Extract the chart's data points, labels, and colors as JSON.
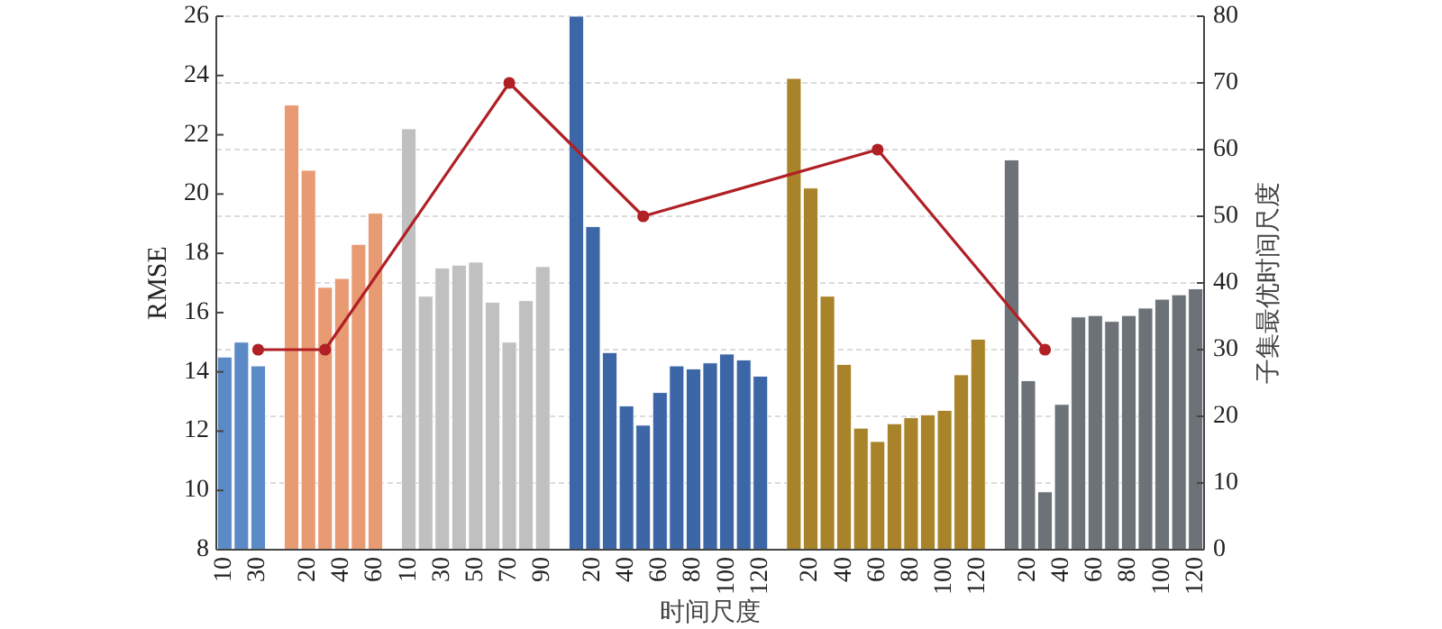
{
  "chart_data": {
    "type": "bar",
    "xlabel": "时间尺度",
    "ylabel": "RMSE",
    "y2label": "子集最优时间尺度",
    "categories": [
      "10",
      null,
      "30",
      null,
      null,
      "20",
      null,
      "40",
      null,
      "60",
      null,
      "10",
      null,
      "30",
      null,
      "50",
      null,
      "70",
      null,
      "90",
      null,
      null,
      "20",
      null,
      "40",
      null,
      "60",
      null,
      "80",
      null,
      "100",
      null,
      "120",
      null,
      null,
      "20",
      null,
      "40",
      null,
      "60",
      null,
      "80",
      null,
      "100",
      null,
      "120",
      null,
      null,
      "20",
      null,
      "40",
      null,
      "60",
      null,
      "80",
      null,
      "100",
      null,
      "120"
    ],
    "series": [
      {
        "values": [
          14.5,
          15.0,
          14.2,
          null,
          23.0,
          20.8,
          16.85,
          17.15,
          18.3,
          19.35,
          null,
          22.2,
          16.55,
          17.5,
          17.6,
          17.7,
          16.35,
          15.0,
          16.4,
          17.55,
          null,
          26.0,
          18.9,
          14.65,
          12.85,
          12.2,
          13.3,
          14.2,
          14.1,
          14.3,
          14.6,
          14.4,
          13.85,
          null,
          23.9,
          20.2,
          16.55,
          14.25,
          12.1,
          11.65,
          12.25,
          12.45,
          12.55,
          12.7,
          13.9,
          15.1,
          null,
          21.15,
          13.7,
          9.95,
          12.9,
          15.85,
          15.9,
          15.7,
          15.9,
          16.15,
          16.45,
          16.6,
          16.8
        ],
        "colors": [
          "#5b8ac6",
          "#5b8ac6",
          "#5b8ac6",
          null,
          "#e89a73",
          "#e89a73",
          "#e89a73",
          "#e89a73",
          "#e89a73",
          "#e89a73",
          null,
          "#c0c0c0",
          "#c0c0c0",
          "#c0c0c0",
          "#c0c0c0",
          "#c0c0c0",
          "#c0c0c0",
          "#c0c0c0",
          "#c0c0c0",
          "#c0c0c0",
          null,
          "#3d66a6",
          "#3d66a6",
          "#3d66a6",
          "#3d66a6",
          "#3d66a6",
          "#3d66a6",
          "#3d66a6",
          "#3d66a6",
          "#3d66a6",
          "#3d66a6",
          "#3d66a6",
          "#3d66a6",
          null,
          "#a8832a",
          "#a8832a",
          "#a8832a",
          "#a8832a",
          "#a8832a",
          "#a8832a",
          "#a8832a",
          "#a8832a",
          "#a8832a",
          "#a8832a",
          "#a8832a",
          "#a8832a",
          null,
          "#6d7278",
          "#6d7278",
          "#6d7278",
          "#6d7278",
          "#6d7278",
          "#6d7278",
          "#6d7278",
          "#6d7278",
          "#6d7278",
          "#6d7278",
          "#6d7278",
          "#6d7278"
        ]
      },
      {
        "type": "line",
        "axis": "y2",
        "color": "#b02025",
        "marker": "circle",
        "line_style": "solid",
        "values": [
          null,
          null,
          30,
          null,
          null,
          null,
          30,
          null,
          null,
          null,
          null,
          null,
          null,
          null,
          null,
          null,
          null,
          70,
          null,
          null,
          null,
          null,
          null,
          null,
          null,
          50,
          null,
          null,
          null,
          null,
          null,
          null,
          null,
          null,
          null,
          null,
          null,
          null,
          null,
          60,
          null,
          null,
          null,
          null,
          null,
          null,
          null,
          null,
          null,
          30,
          null,
          null,
          null,
          null,
          null,
          null,
          null,
          null,
          null
        ]
      }
    ],
    "ylim": [
      8,
      26
    ],
    "yticks": [
      8,
      10,
      12,
      14,
      16,
      18,
      20,
      22,
      24,
      26
    ],
    "y2lim": [
      0,
      80
    ],
    "y2ticks": [
      0,
      10,
      20,
      30,
      40,
      50,
      60,
      70,
      80
    ],
    "grid": "y2"
  }
}
